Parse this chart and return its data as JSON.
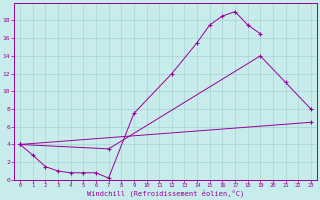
{
  "title": "",
  "xlabel": "Windchill (Refroidissement éolien,°C)",
  "background_color": "#c8ecec",
  "line_color": "#990099",
  "xlim": [
    -0.5,
    23.5
  ],
  "ylim": [
    0,
    20
  ],
  "xticks": [
    0,
    1,
    2,
    3,
    4,
    5,
    6,
    7,
    8,
    9,
    10,
    11,
    12,
    13,
    14,
    15,
    16,
    17,
    18,
    19,
    20,
    21,
    22,
    23
  ],
  "yticks": [
    0,
    2,
    4,
    6,
    8,
    10,
    12,
    14,
    16,
    18
  ],
  "line1_x": [
    0,
    1,
    2,
    3,
    4,
    5,
    6,
    7,
    9,
    12,
    14,
    15,
    16,
    17,
    18,
    19
  ],
  "line1_y": [
    4.0,
    2.8,
    1.5,
    1.0,
    0.8,
    0.8,
    0.8,
    0.2,
    7.5,
    12.0,
    15.5,
    17.5,
    18.5,
    19.0,
    17.5,
    16.5
  ],
  "line2_x": [
    0,
    7,
    19,
    21,
    23
  ],
  "line2_y": [
    4.0,
    3.5,
    14.0,
    11.0,
    8.0
  ],
  "line3_x": [
    0,
    23
  ],
  "line3_y": [
    4.0,
    6.5
  ]
}
